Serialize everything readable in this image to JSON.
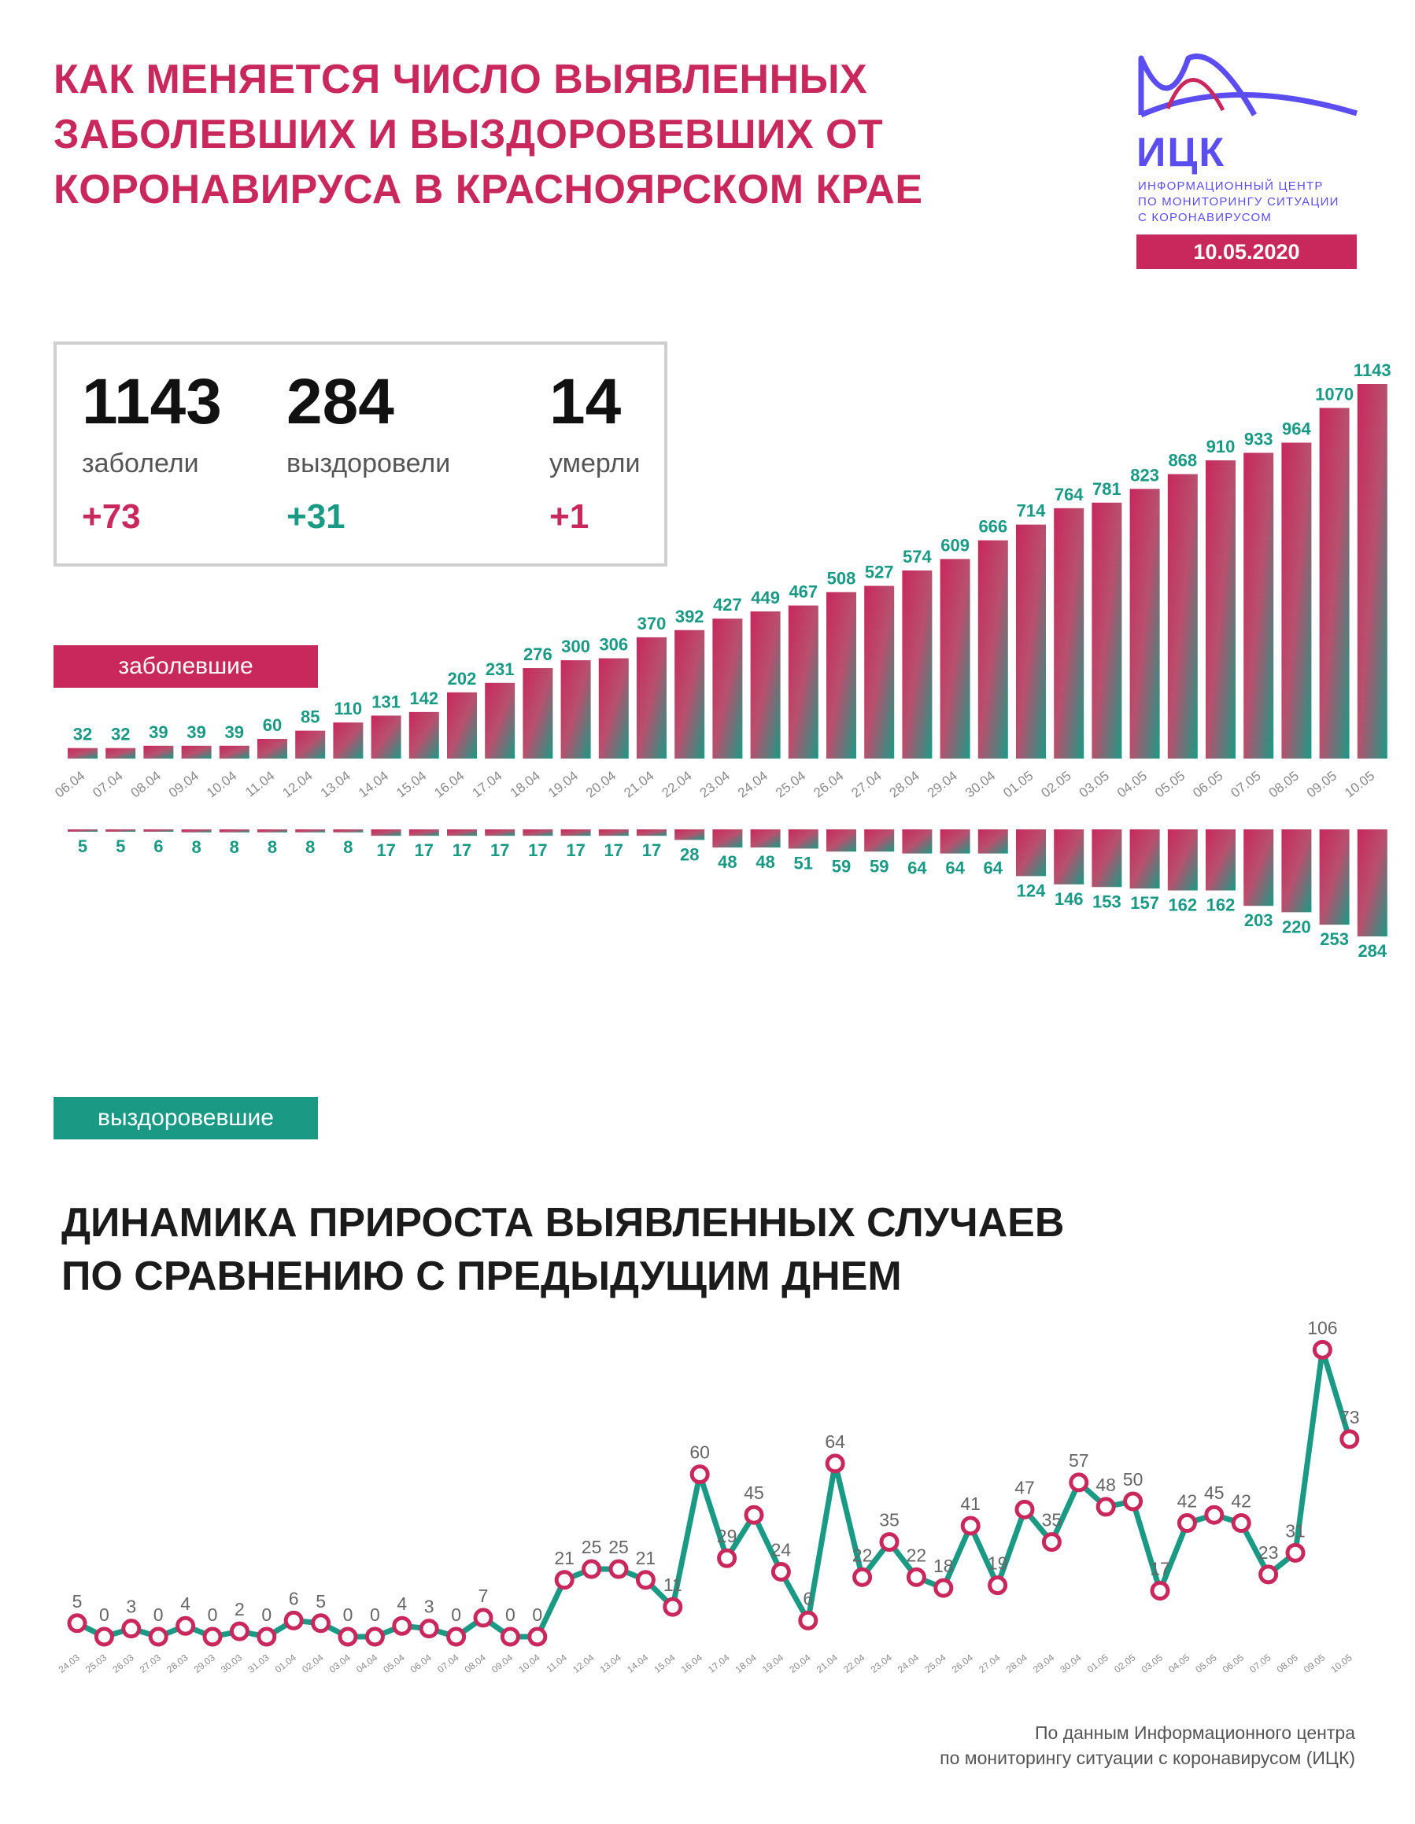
{
  "header": {
    "title_lines": [
      "КАК МЕНЯЕТСЯ ЧИСЛО ВЫЯВЛЕННЫХ",
      "ЗАБОЛЕВШИХ И ВЫЗДОРОВЕВШИХ ОТ",
      "КОРОНАВИРУСА В КРАСНОЯРСКОМ КРАЕ"
    ]
  },
  "logo": {
    "abbr": "ИЦК",
    "lines": [
      "ИНФОРМАЦИОННЫЙ ЦЕНТР",
      "ПО МОНИТОРИНГУ СИТУАЦИИ",
      "С КОРОНАВИРУСОМ"
    ],
    "date": "10.05.2020"
  },
  "stats": [
    {
      "value": "1143",
      "label": "заболели",
      "delta": "+73"
    },
    {
      "value": "284",
      "label": "выздоровели",
      "delta": "+31"
    },
    {
      "value": "14",
      "label": "умерли",
      "delta": "+1"
    }
  ],
  "tags": {
    "sick": "заболевшие",
    "recovered": "выздоровевшие"
  },
  "section2": {
    "title_lines": [
      "ДИНАМИКА ПРИРОСТА ВЫЯВЛЕННЫХ СЛУЧАЕВ",
      "ПО СРАВНЕНИЮ С ПРЕДЫДУЩИМ ДНЕМ"
    ]
  },
  "source": {
    "lines": [
      "По данным Информационного центра",
      "по мониторингу ситуации с коронавирусом (ИЦК)"
    ]
  },
  "colors": {
    "accent": "#c8285c",
    "teal": "#1a9a85",
    "purple": "#5b4df0",
    "grey_border": "#cfcfcf"
  },
  "chart_data": [
    {
      "type": "bar",
      "categories": [
        "06.04",
        "07.04",
        "08.04",
        "09.04",
        "10.04",
        "11.04",
        "12.04",
        "13.04",
        "14.04",
        "15.04",
        "16.04",
        "17.04",
        "18.04",
        "19.04",
        "20.04",
        "21.04",
        "22.04",
        "23.04",
        "24.04",
        "25.04",
        "26.04",
        "27.04",
        "28.04",
        "29.04",
        "30.04",
        "01.05",
        "02.05",
        "03.05",
        "04.05",
        "05.05",
        "06.05",
        "07.05",
        "08.05",
        "09.05",
        "10.05"
      ],
      "series": [
        {
          "name": "заболевшие",
          "values": [
            32,
            32,
            39,
            39,
            39,
            60,
            85,
            110,
            131,
            142,
            202,
            231,
            276,
            300,
            306,
            370,
            392,
            427,
            449,
            467,
            508,
            527,
            574,
            609,
            666,
            714,
            764,
            781,
            823,
            868,
            910,
            933,
            964,
            1070,
            1143
          ]
        },
        {
          "name": "выздоровевшие",
          "values": [
            5,
            5,
            6,
            8,
            8,
            8,
            8,
            8,
            17,
            17,
            17,
            17,
            17,
            17,
            17,
            17,
            28,
            48,
            48,
            51,
            59,
            59,
            64,
            64,
            64,
            124,
            146,
            153,
            157,
            162,
            162,
            203,
            220,
            253,
            284
          ]
        }
      ]
    },
    {
      "type": "line",
      "x": [
        "24.03",
        "25.03",
        "26.03",
        "27.03",
        "28.03",
        "29.03",
        "30.03",
        "31.03",
        "01.04",
        "02.04",
        "03.04",
        "04.04",
        "05.04",
        "06.04",
        "07.04",
        "08.04",
        "09.04",
        "10.04",
        "11.04",
        "12.04",
        "13.04",
        "14.04",
        "15.04",
        "16.04",
        "17.04",
        "18.04",
        "19.04",
        "20.04",
        "21.04",
        "22.04",
        "23.04",
        "24.04",
        "25.04",
        "26.04",
        "27.04",
        "28.04",
        "29.04",
        "30.04",
        "01.05",
        "02.05",
        "03.05",
        "04.05",
        "05.05",
        "06.05",
        "07.05",
        "08.05",
        "09.05",
        "10.05"
      ],
      "values": [
        5,
        0,
        3,
        0,
        4,
        0,
        2,
        0,
        6,
        5,
        0,
        0,
        4,
        3,
        0,
        7,
        0,
        0,
        21,
        25,
        25,
        21,
        11,
        60,
        29,
        45,
        24,
        6,
        64,
        22,
        35,
        22,
        18,
        41,
        19,
        47,
        35,
        57,
        48,
        50,
        17,
        42,
        45,
        42,
        23,
        31,
        106,
        73
      ]
    }
  ]
}
